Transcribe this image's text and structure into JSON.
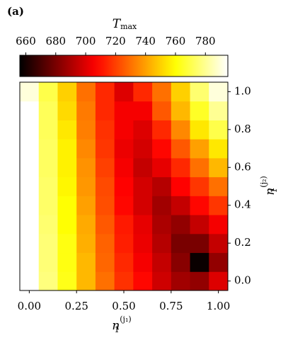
{
  "chart_data": {
    "type": "heatmap",
    "panel_label": "(a)",
    "colorbar_label": {
      "base": "T",
      "sub": "max"
    },
    "xlabel": {
      "base": "n",
      "sub": "1",
      "sup": "(j₁)"
    },
    "ylabel": {
      "base": "n",
      "sub": "1",
      "sup": "(j₂)"
    },
    "cmap": "hot",
    "clim": [
      656,
      795
    ],
    "cticks": [
      660,
      680,
      700,
      720,
      740,
      760,
      780
    ],
    "x": [
      0,
      0.1,
      0.2,
      0.3,
      0.4,
      0.5,
      0.6,
      0.7,
      0.8,
      0.9,
      1.0
    ],
    "y": [
      0,
      0.1,
      0.2,
      0.3,
      0.4,
      0.5,
      0.6,
      0.7,
      0.8,
      0.9,
      1.0
    ],
    "z": [
      [
        795,
        777,
        763,
        745,
        730,
        717,
        708,
        697,
        688,
        685,
        700
      ],
      [
        795,
        776,
        762,
        745,
        728,
        715,
        705,
        695,
        683,
        658,
        685
      ],
      [
        795,
        776,
        762,
        743,
        727,
        713,
        703,
        692,
        680,
        680,
        695
      ],
      [
        795,
        775,
        760,
        742,
        725,
        712,
        702,
        690,
        685,
        695,
        705
      ],
      [
        795,
        774,
        760,
        740,
        723,
        708,
        698,
        688,
        695,
        708,
        718
      ],
      [
        795,
        774,
        758,
        738,
        722,
        707,
        698,
        692,
        707,
        718,
        730
      ],
      [
        795,
        773,
        757,
        737,
        720,
        705,
        695,
        702,
        715,
        730,
        745
      ],
      [
        795,
        773,
        757,
        735,
        718,
        703,
        698,
        708,
        725,
        740,
        755
      ],
      [
        795,
        772,
        755,
        733,
        717,
        705,
        700,
        715,
        735,
        755,
        770
      ],
      [
        795,
        772,
        752,
        732,
        715,
        705,
        705,
        725,
        745,
        765,
        780
      ],
      [
        790,
        770,
        750,
        730,
        715,
        700,
        715,
        730,
        750,
        775,
        790
      ]
    ],
    "xlim": [
      -0.05,
      1.05
    ],
    "ylim": [
      -0.05,
      1.05
    ],
    "xticks": [
      {
        "value": 0,
        "label": "0.00"
      },
      {
        "value": 0.25,
        "label": "0.25"
      },
      {
        "value": 0.5,
        "label": "0.50"
      },
      {
        "value": 0.75,
        "label": "0.75"
      },
      {
        "value": 1,
        "label": "1.00"
      }
    ],
    "yticks": [
      {
        "value": 0,
        "label": "0.0"
      },
      {
        "value": 0.2,
        "label": "0.2"
      },
      {
        "value": 0.4,
        "label": "0.4"
      },
      {
        "value": 0.6,
        "label": "0.6"
      },
      {
        "value": 0.8,
        "label": "0.8"
      },
      {
        "value": 1,
        "label": "1.0"
      }
    ]
  }
}
